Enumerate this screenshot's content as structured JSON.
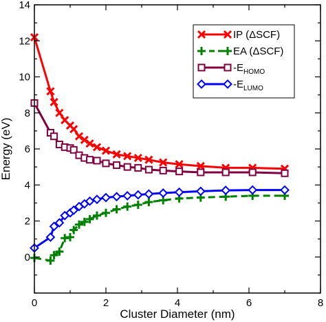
{
  "chart_data": {
    "type": "line",
    "title": "",
    "xlabel": "Cluster Diameter (nm)",
    "ylabel": "Energy (eV)",
    "xlim": [
      0,
      8
    ],
    "ylim": [
      -2,
      14
    ],
    "xticks": [
      0,
      2,
      4,
      6,
      8
    ],
    "yticks": [
      0,
      2,
      4,
      6,
      8,
      10,
      12,
      14
    ],
    "grid": false,
    "legend_position": "top-right",
    "series": [
      {
        "name": "IP (ΔSCF)",
        "color": "#ff0000",
        "marker": "x",
        "line": "solid",
        "x": [
          0.0,
          0.45,
          0.55,
          0.7,
          0.85,
          1.0,
          1.1,
          1.25,
          1.4,
          1.55,
          1.75,
          2.0,
          2.3,
          2.6,
          2.9,
          3.2,
          3.6,
          4.05,
          4.65,
          5.35,
          6.1,
          7.0
        ],
        "y": [
          12.2,
          9.2,
          8.6,
          8.0,
          7.6,
          7.3,
          7.1,
          6.7,
          6.5,
          6.3,
          6.1,
          5.9,
          5.7,
          5.6,
          5.5,
          5.4,
          5.25,
          5.15,
          5.05,
          4.95,
          4.95,
          4.9
        ]
      },
      {
        "name": "EA (ΔSCF)",
        "color": "#008000",
        "marker": "+",
        "line": "dashed",
        "x": [
          0.0,
          0.45,
          0.55,
          0.7,
          0.85,
          1.0,
          1.1,
          1.25,
          1.4,
          1.55,
          1.75,
          2.0,
          2.3,
          2.6,
          2.9,
          3.2,
          3.6,
          4.05,
          4.65,
          5.35,
          6.1,
          7.0
        ],
        "y": [
          -0.05,
          -0.2,
          0.1,
          0.3,
          1.05,
          1.1,
          1.5,
          1.8,
          1.95,
          2.1,
          2.3,
          2.45,
          2.65,
          2.8,
          2.9,
          3.05,
          3.15,
          3.25,
          3.3,
          3.35,
          3.4,
          3.4
        ]
      },
      {
        "name": "-E_HOMO",
        "color": "#800040",
        "marker": "square",
        "line": "solid",
        "x": [
          0.0,
          0.45,
          0.55,
          0.7,
          0.85,
          1.0,
          1.1,
          1.25,
          1.4,
          1.55,
          1.75,
          2.0,
          2.3,
          2.6,
          2.9,
          3.2,
          3.6,
          4.05,
          4.65,
          5.35,
          6.1,
          7.0
        ],
        "y": [
          8.55,
          6.9,
          6.7,
          6.25,
          6.1,
          6.05,
          5.95,
          5.65,
          5.5,
          5.4,
          5.35,
          5.2,
          5.1,
          5.0,
          4.95,
          4.85,
          4.8,
          4.75,
          4.7,
          4.7,
          4.7,
          4.65
        ]
      },
      {
        "name": "-E_LUMO",
        "color": "#0000ff",
        "marker": "diamond",
        "line": "solid",
        "x": [
          0.0,
          0.45,
          0.55,
          0.7,
          0.85,
          1.0,
          1.1,
          1.25,
          1.4,
          1.55,
          1.75,
          2.0,
          2.3,
          2.6,
          2.9,
          3.2,
          3.6,
          4.05,
          4.65,
          5.35,
          6.1,
          7.0
        ],
        "y": [
          0.5,
          1.1,
          1.7,
          1.9,
          2.3,
          2.45,
          2.6,
          2.8,
          2.95,
          3.1,
          3.2,
          3.3,
          3.35,
          3.4,
          3.45,
          3.5,
          3.55,
          3.6,
          3.65,
          3.7,
          3.72,
          3.72
        ]
      }
    ],
    "legend": [
      {
        "main": "IP (ΔSCF)",
        "sub": ""
      },
      {
        "main": "EA (ΔSCF)",
        "sub": ""
      },
      {
        "main": "-E",
        "sub": "HOMO"
      },
      {
        "main": "-E",
        "sub": "LUMO"
      }
    ]
  }
}
